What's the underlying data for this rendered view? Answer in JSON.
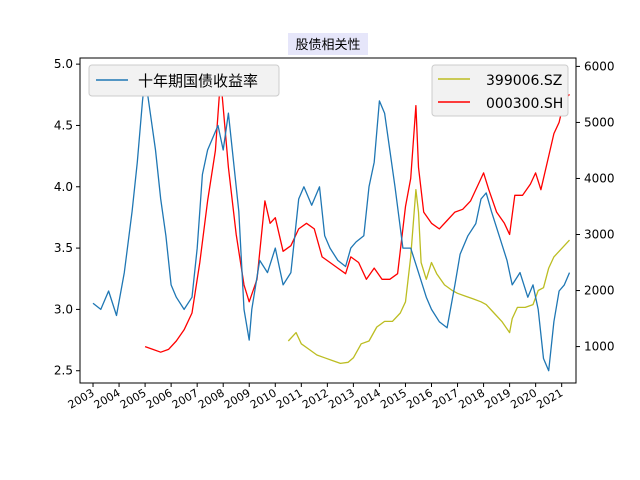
{
  "chart_data": {
    "type": "line",
    "title": "股债相关性",
    "x_ticks": [
      "2003",
      "2004",
      "2005",
      "2006",
      "2007",
      "2008",
      "2009",
      "2010",
      "2011",
      "2012",
      "2013",
      "2014",
      "2015",
      "2016",
      "2017",
      "2018",
      "2019",
      "2020",
      "2021"
    ],
    "y_left": {
      "ticks": [
        "2.5",
        "3.0",
        "3.5",
        "4.0",
        "4.5",
        "5.0"
      ],
      "ylim": [
        2.4,
        5.05
      ]
    },
    "y_right": {
      "ticks": [
        "1000",
        "2000",
        "3000",
        "4000",
        "5000",
        "6000"
      ],
      "ylim": [
        350,
        6150
      ]
    },
    "xlim": [
      2002.5,
      2021.55
    ],
    "legend_left": "top-left",
    "legend_right": "top-right",
    "grid": false,
    "series": [
      {
        "name": "十年期国债收益率",
        "axis": "left",
        "color": "#1f77b4",
        "x": [
          2003.0,
          2003.3,
          2003.6,
          2003.9,
          2004.2,
          2004.5,
          2004.7,
          2004.9,
          2005.0,
          2005.2,
          2005.4,
          2005.6,
          2005.8,
          2006.0,
          2006.2,
          2006.5,
          2006.8,
          2007.0,
          2007.2,
          2007.4,
          2007.6,
          2007.8,
          2008.0,
          2008.2,
          2008.4,
          2008.6,
          2008.8,
          2009.0,
          2009.1,
          2009.4,
          2009.7,
          2010.0,
          2010.3,
          2010.6,
          2010.9,
          2011.1,
          2011.4,
          2011.7,
          2011.9,
          2012.1,
          2012.4,
          2012.7,
          2012.9,
          2013.1,
          2013.4,
          2013.6,
          2013.8,
          2014.0,
          2014.2,
          2014.4,
          2014.6,
          2014.9,
          2015.2,
          2015.5,
          2015.8,
          2016.0,
          2016.3,
          2016.6,
          2016.9,
          2017.1,
          2017.4,
          2017.7,
          2017.9,
          2018.1,
          2018.3,
          2018.6,
          2018.9,
          2019.1,
          2019.4,
          2019.7,
          2019.9,
          2020.1,
          2020.3,
          2020.5,
          2020.7,
          2020.9,
          2021.1,
          2021.3
        ],
        "y": [
          3.05,
          3.0,
          3.15,
          2.95,
          3.3,
          3.8,
          4.2,
          4.7,
          4.9,
          4.6,
          4.3,
          3.9,
          3.6,
          3.2,
          3.1,
          3.0,
          3.1,
          3.5,
          4.1,
          4.3,
          4.4,
          4.5,
          4.3,
          4.6,
          4.2,
          3.8,
          3.0,
          2.75,
          3.0,
          3.4,
          3.3,
          3.5,
          3.2,
          3.3,
          3.9,
          4.0,
          3.85,
          4.0,
          3.6,
          3.5,
          3.4,
          3.35,
          3.5,
          3.55,
          3.6,
          4.0,
          4.2,
          4.7,
          4.6,
          4.3,
          4.0,
          3.5,
          3.5,
          3.3,
          3.1,
          3.0,
          2.9,
          2.85,
          3.2,
          3.45,
          3.6,
          3.7,
          3.9,
          3.95,
          3.8,
          3.6,
          3.4,
          3.2,
          3.3,
          3.1,
          3.2,
          3.0,
          2.6,
          2.5,
          2.9,
          3.15,
          3.2,
          3.3
        ]
      },
      {
        "name": "399006.SZ",
        "axis": "right",
        "color": "#bcbd22",
        "x": [
          2010.5,
          2010.8,
          2011.0,
          2011.3,
          2011.6,
          2011.9,
          2012.2,
          2012.5,
          2012.8,
          2013.0,
          2013.3,
          2013.6,
          2013.9,
          2014.2,
          2014.5,
          2014.8,
          2015.0,
          2015.2,
          2015.4,
          2015.5,
          2015.6,
          2015.8,
          2016.0,
          2016.2,
          2016.5,
          2016.8,
          2017.0,
          2017.3,
          2017.6,
          2017.9,
          2018.1,
          2018.4,
          2018.7,
          2019.0,
          2019.1,
          2019.3,
          2019.6,
          2019.9,
          2020.1,
          2020.3,
          2020.5,
          2020.7,
          2020.9,
          2021.1,
          2021.3
        ],
        "y": [
          1100,
          1250,
          1050,
          950,
          850,
          800,
          750,
          700,
          720,
          800,
          1050,
          1100,
          1350,
          1450,
          1450,
          1600,
          1800,
          2600,
          3800,
          3400,
          2500,
          2200,
          2500,
          2300,
          2100,
          2000,
          1950,
          1900,
          1850,
          1800,
          1750,
          1600,
          1450,
          1250,
          1500,
          1700,
          1700,
          1750,
          2000,
          2050,
          2400,
          2600,
          2700,
          2800,
          2900
        ]
      },
      {
        "name": "000300.SH",
        "axis": "right",
        "color": "#ff0000",
        "x": [
          2005.0,
          2005.3,
          2005.6,
          2005.9,
          2006.2,
          2006.5,
          2006.8,
          2007.1,
          2007.4,
          2007.7,
          2007.9,
          2008.2,
          2008.5,
          2008.8,
          2009.0,
          2009.3,
          2009.6,
          2009.8,
          2010.0,
          2010.3,
          2010.6,
          2010.9,
          2011.2,
          2011.5,
          2011.8,
          2012.1,
          2012.4,
          2012.7,
          2012.9,
          2013.2,
          2013.5,
          2013.8,
          2014.1,
          2014.4,
          2014.7,
          2015.0,
          2015.2,
          2015.4,
          2015.5,
          2015.7,
          2016.0,
          2016.3,
          2016.6,
          2016.9,
          2017.2,
          2017.5,
          2017.8,
          2018.0,
          2018.2,
          2018.5,
          2018.8,
          2019.0,
          2019.2,
          2019.5,
          2019.8,
          2020.0,
          2020.2,
          2020.5,
          2020.7,
          2020.9,
          2021.1,
          2021.3
        ],
        "y": [
          1000,
          950,
          900,
          950,
          1100,
          1300,
          1600,
          2500,
          3600,
          4500,
          5800,
          4200,
          3000,
          2100,
          1800,
          2200,
          3600,
          3200,
          3300,
          2700,
          2800,
          3100,
          3200,
          3100,
          2600,
          2500,
          2400,
          2300,
          2600,
          2500,
          2200,
          2400,
          2200,
          2200,
          2300,
          3500,
          4000,
          5300,
          4200,
          3400,
          3200,
          3100,
          3250,
          3400,
          3450,
          3600,
          3900,
          4100,
          3800,
          3400,
          3200,
          3000,
          3700,
          3700,
          3900,
          4100,
          3800,
          4400,
          4800,
          5000,
          5400,
          5500
        ]
      }
    ]
  }
}
